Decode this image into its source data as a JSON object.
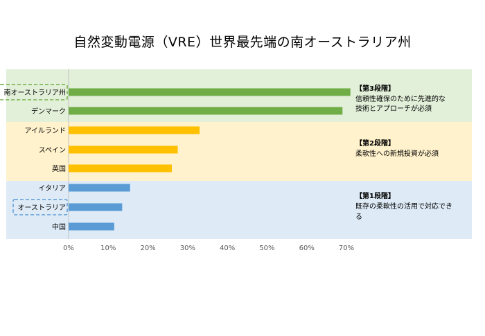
{
  "chart_data": {
    "type": "bar",
    "title": "自然変動電源（VRE）世界最先端の南オーストラリア州",
    "orientation": "horizontal",
    "xlim": [
      0,
      70
    ],
    "x_ticks": [
      "0%",
      "10%",
      "20%",
      "30%",
      "40%",
      "50%",
      "60%",
      "70%"
    ],
    "categories": [
      "南オーストラリア州",
      "デンマーク",
      "アイルランド",
      "スペイン",
      "英国",
      "イタリア",
      "オーストラリア",
      "中国"
    ],
    "values": [
      71,
      69,
      33,
      27.5,
      26,
      15.5,
      13.5,
      11.5
    ],
    "value_unit": "%",
    "bar_colors": [
      "#70AD47",
      "#70AD47",
      "#FFC000",
      "#FFC000",
      "#FFC000",
      "#5B9BD5",
      "#5B9BD5",
      "#5B9BD5"
    ],
    "highlighted": [
      "南オーストラリア州",
      "オーストラリア"
    ],
    "bands": [
      {
        "label": "【第3段階】",
        "desc": [
          "信頼性確保のために先進的な",
          "技術とアプローチが必須"
        ],
        "color": "#E2EFD9",
        "categories": [
          "南オーストラリア州",
          "デンマーク"
        ]
      },
      {
        "label": "【第2段階】",
        "desc": [
          "柔軟性への新規投資が必須"
        ],
        "color": "#FFF2CC",
        "categories": [
          "アイルランド",
          "スペイン",
          "英国"
        ]
      },
      {
        "label": "【第1段階】",
        "desc": [
          "既存の柔軟性の活用で対応でき",
          "る"
        ],
        "color": "#DEEBF7",
        "categories": [
          "イタリア",
          "オーストラリア",
          "中国"
        ]
      }
    ],
    "grid": true,
    "legend": "none"
  }
}
